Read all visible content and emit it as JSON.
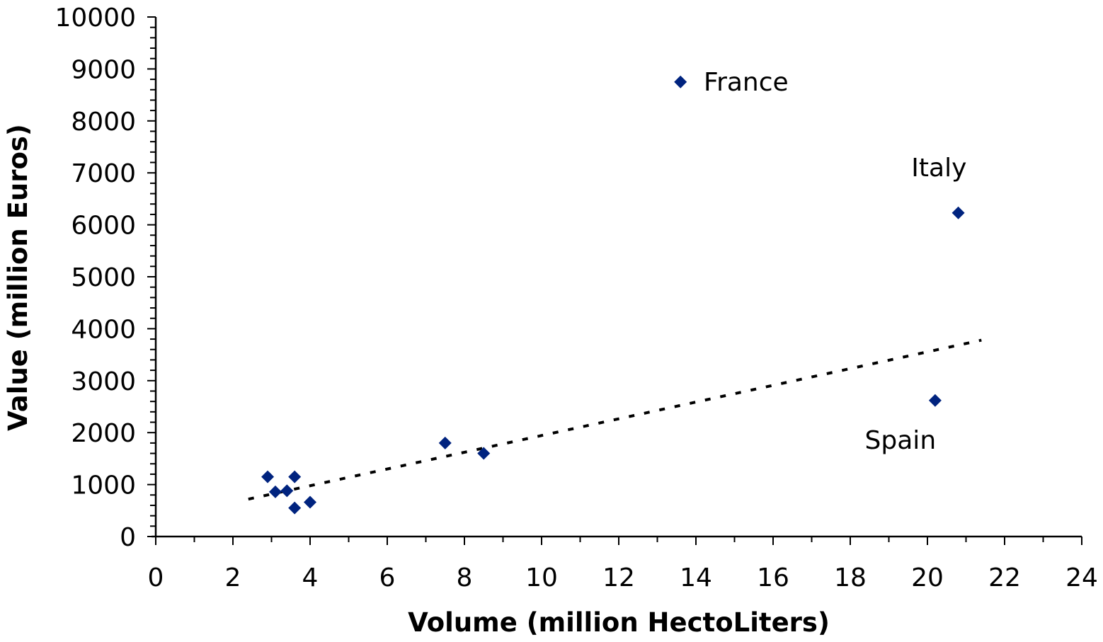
{
  "chart_data": {
    "type": "scatter",
    "title": "",
    "xlabel": "Volume (million HectoLiters)",
    "ylabel": "Value (million Euros)",
    "xlim": [
      0,
      24
    ],
    "ylim": [
      0,
      10000
    ],
    "x_ticks": [
      0,
      2,
      4,
      6,
      8,
      10,
      12,
      14,
      16,
      18,
      20,
      22,
      24
    ],
    "y_ticks": [
      0,
      1000,
      2000,
      3000,
      4000,
      5000,
      6000,
      7000,
      8000,
      9000,
      10000
    ],
    "grid": false,
    "legend": null,
    "marker_color": "#00237F",
    "series": [
      {
        "name": "Countries",
        "points": [
          {
            "x": 2.9,
            "y": 1150
          },
          {
            "x": 3.1,
            "y": 860
          },
          {
            "x": 3.4,
            "y": 880
          },
          {
            "x": 3.6,
            "y": 1150
          },
          {
            "x": 3.6,
            "y": 550
          },
          {
            "x": 4.0,
            "y": 660
          },
          {
            "x": 7.5,
            "y": 1800
          },
          {
            "x": 8.5,
            "y": 1600
          },
          {
            "x": 13.6,
            "y": 8750,
            "label": "France"
          },
          {
            "x": 20.8,
            "y": 6230,
            "label": "Italy"
          },
          {
            "x": 20.2,
            "y": 2620,
            "label": "Spain"
          }
        ]
      }
    ],
    "trendline": {
      "type": "linear",
      "style": "dotted",
      "color": "#000000",
      "from": {
        "x": 2.4,
        "y": 720
      },
      "to": {
        "x": 21.4,
        "y": 3780
      }
    },
    "annotations": [
      {
        "text": "France",
        "x": 15.3,
        "y": 8750
      },
      {
        "text": "Italy",
        "x": 20.3,
        "y": 7100
      },
      {
        "text": "Spain",
        "x": 19.3,
        "y": 1850
      }
    ]
  }
}
